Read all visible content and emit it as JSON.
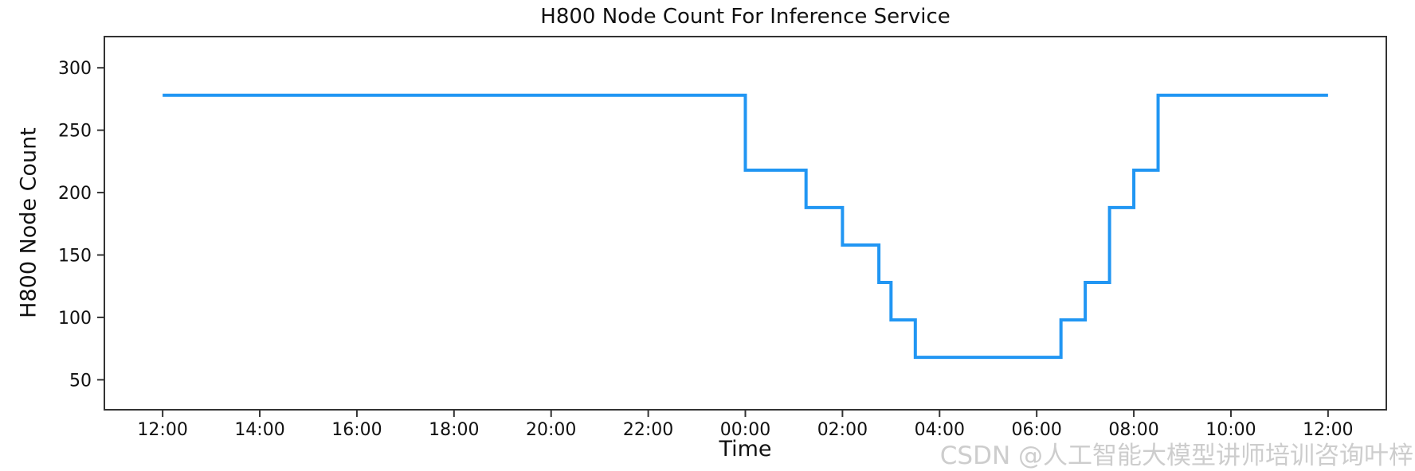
{
  "chart_data": {
    "type": "line",
    "subtype": "step-post",
    "title": "H800 Node Count For Inference Service",
    "xlabel": "Time",
    "ylabel": "H800 Node Count",
    "grid": false,
    "legend": null,
    "line_color": "#2196f3",
    "axis_color": "#333333",
    "text_color": "#111111",
    "x_unit": "hours_after_first_12:00",
    "xlim": [
      -1.2,
      25.2
    ],
    "ylim": [
      26,
      325
    ],
    "y_ticks": [
      50,
      100,
      150,
      200,
      250,
      300
    ],
    "x_ticks": [
      {
        "t": 0,
        "label": "12:00"
      },
      {
        "t": 2,
        "label": "14:00"
      },
      {
        "t": 4,
        "label": "16:00"
      },
      {
        "t": 6,
        "label": "18:00"
      },
      {
        "t": 8,
        "label": "20:00"
      },
      {
        "t": 10,
        "label": "22:00"
      },
      {
        "t": 12,
        "label": "00:00"
      },
      {
        "t": 14,
        "label": "02:00"
      },
      {
        "t": 16,
        "label": "04:00"
      },
      {
        "t": 18,
        "label": "06:00"
      },
      {
        "t": 20,
        "label": "08:00"
      },
      {
        "t": 22,
        "label": "10:00"
      },
      {
        "t": 24,
        "label": "12:00"
      }
    ],
    "steps": [
      {
        "time_label": "12:00",
        "t_hours": 0,
        "node_count": 278
      },
      {
        "time_label": "00:00",
        "t_hours": 12,
        "node_count": 218
      },
      {
        "time_label": "01:15",
        "t_hours": 13.25,
        "node_count": 188
      },
      {
        "time_label": "02:00",
        "t_hours": 14,
        "node_count": 158
      },
      {
        "time_label": "02:45",
        "t_hours": 14.75,
        "node_count": 128
      },
      {
        "time_label": "03:00",
        "t_hours": 15,
        "node_count": 98
      },
      {
        "time_label": "03:30",
        "t_hours": 15.5,
        "node_count": 68
      },
      {
        "time_label": "06:30",
        "t_hours": 18.5,
        "node_count": 98
      },
      {
        "time_label": "07:00",
        "t_hours": 19,
        "node_count": 128
      },
      {
        "time_label": "07:30",
        "t_hours": 19.5,
        "node_count": 188
      },
      {
        "time_label": "08:00",
        "t_hours": 20,
        "node_count": 218
      },
      {
        "time_label": "08:30",
        "t_hours": 20.5,
        "node_count": 278
      }
    ],
    "end_t_hours": 24
  },
  "watermark": {
    "text": "CSDN @人工智能大模型讲师培训咨询叶梓",
    "color": "#cdcdcd"
  }
}
